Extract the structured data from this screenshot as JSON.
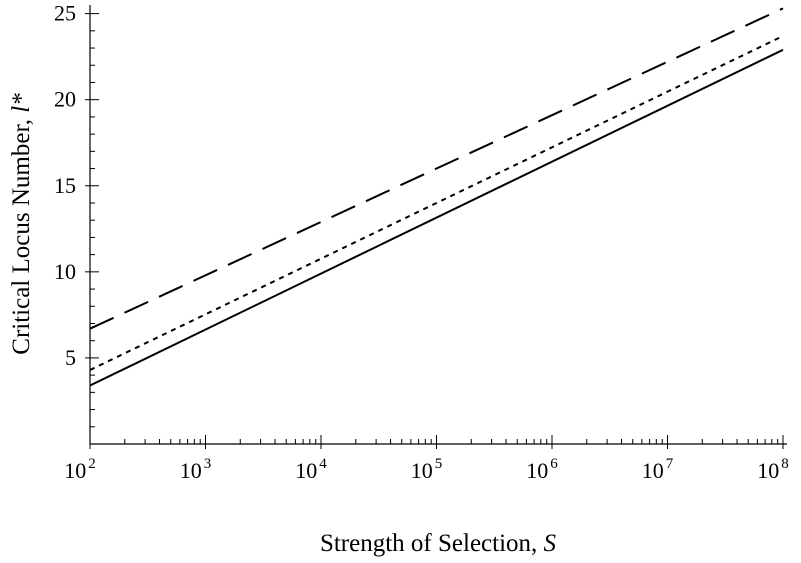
{
  "chart_data": {
    "type": "line",
    "xlabel": "Strength of Selection,",
    "xlabel_var": "S",
    "ylabel": "Critical Locus Number,",
    "ylabel_var": "l*",
    "x_scale": "log10",
    "xlim": [
      100,
      100000000
    ],
    "ylim": [
      0,
      25.5
    ],
    "x_ticks": [
      {
        "base": "10",
        "exp": "2",
        "value": 100
      },
      {
        "base": "10",
        "exp": "3",
        "value": 1000
      },
      {
        "base": "10",
        "exp": "4",
        "value": 10000
      },
      {
        "base": "10",
        "exp": "5",
        "value": 100000
      },
      {
        "base": "10",
        "exp": "6",
        "value": 1000000
      },
      {
        "base": "10",
        "exp": "7",
        "value": 10000000
      },
      {
        "base": "10",
        "exp": "8",
        "value": 100000000
      }
    ],
    "y_ticks": [
      {
        "label": "5",
        "value": 5
      },
      {
        "label": "10",
        "value": 10
      },
      {
        "label": "15",
        "value": 15
      },
      {
        "label": "20",
        "value": 20
      },
      {
        "label": "25",
        "value": 25
      }
    ],
    "y_minor_ticks": [
      1,
      2,
      3,
      4,
      6,
      7,
      8,
      9,
      11,
      12,
      13,
      14,
      16,
      17,
      18,
      19,
      21,
      22,
      23,
      24
    ],
    "grid": false,
    "legend": "none",
    "series": [
      {
        "style": "dashed",
        "x": [
          100,
          100000000
        ],
        "y": [
          6.7,
          25.3
        ]
      },
      {
        "style": "dotted",
        "x": [
          100,
          100000000
        ],
        "y": [
          4.3,
          23.7
        ]
      },
      {
        "style": "solid",
        "x": [
          100,
          100000000
        ],
        "y": [
          3.4,
          22.9
        ]
      }
    ]
  }
}
